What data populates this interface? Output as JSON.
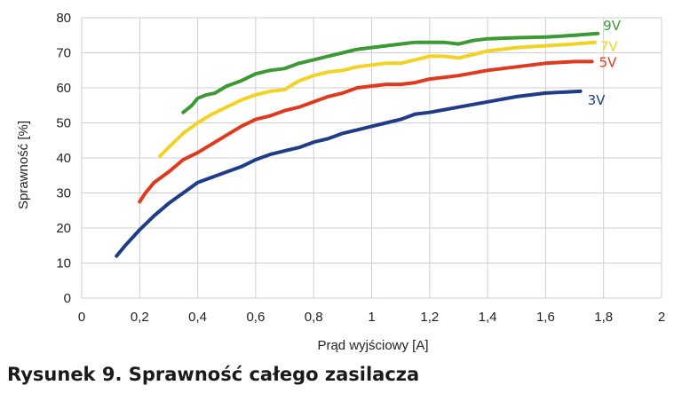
{
  "caption": "Rysunek 9. Sprawność całego zasilacza",
  "chart_data": {
    "type": "line",
    "title": "",
    "xlabel": "Prąd wyjściowy [A]",
    "ylabel": "Sprawność [%]",
    "xlim": [
      0,
      2
    ],
    "ylim": [
      0,
      80
    ],
    "x_ticks": [
      "0",
      "0,2",
      "0,4",
      "0,6",
      "0,8",
      "1",
      "1,2",
      "1,4",
      "1,6",
      "1,8",
      "2"
    ],
    "y_ticks": [
      "0",
      "10",
      "20",
      "30",
      "40",
      "50",
      "60",
      "70",
      "80"
    ],
    "grid": true,
    "legend": "inline-right",
    "series": [
      {
        "name": "9V",
        "color": "#3c9a34",
        "x": [
          0.35,
          0.38,
          0.4,
          0.43,
          0.46,
          0.5,
          0.55,
          0.6,
          0.65,
          0.7,
          0.75,
          0.8,
          0.85,
          0.9,
          0.95,
          1.0,
          1.05,
          1.1,
          1.15,
          1.2,
          1.25,
          1.3,
          1.35,
          1.4,
          1.5,
          1.6,
          1.7,
          1.78
        ],
        "y": [
          53,
          55,
          57,
          58,
          58.5,
          60.5,
          62,
          64,
          65,
          65.5,
          67,
          68,
          69,
          70,
          71,
          71.5,
          72,
          72.5,
          73,
          73,
          73,
          72.5,
          73.5,
          74,
          74.3,
          74.5,
          75,
          75.5
        ]
      },
      {
        "name": "7V",
        "color": "#f2d224",
        "x": [
          0.27,
          0.3,
          0.35,
          0.4,
          0.45,
          0.5,
          0.55,
          0.6,
          0.65,
          0.7,
          0.75,
          0.8,
          0.85,
          0.9,
          0.95,
          1.0,
          1.05,
          1.1,
          1.15,
          1.2,
          1.25,
          1.3,
          1.35,
          1.4,
          1.5,
          1.6,
          1.7,
          1.77
        ],
        "y": [
          40.5,
          43,
          47,
          50,
          52.5,
          54.5,
          56.5,
          58,
          59,
          59.5,
          62,
          63.5,
          64.5,
          65,
          66,
          66.5,
          67,
          67,
          68,
          69,
          69,
          68.5,
          69.5,
          70.5,
          71.5,
          72,
          72.5,
          73
        ]
      },
      {
        "name": "5V",
        "color": "#e03a1e",
        "x": [
          0.2,
          0.22,
          0.25,
          0.3,
          0.35,
          0.4,
          0.45,
          0.5,
          0.55,
          0.6,
          0.65,
          0.7,
          0.75,
          0.8,
          0.85,
          0.9,
          0.95,
          1.0,
          1.05,
          1.1,
          1.15,
          1.2,
          1.3,
          1.4,
          1.5,
          1.6,
          1.7,
          1.76
        ],
        "y": [
          27.5,
          30,
          33,
          36,
          39.5,
          41.5,
          44,
          46.5,
          49,
          51,
          52,
          53.5,
          54.5,
          56,
          57.5,
          58.5,
          60,
          60.5,
          61,
          61,
          61.5,
          62.5,
          63.5,
          65,
          66,
          67,
          67.5,
          67.5
        ]
      },
      {
        "name": "3V",
        "color": "#1f3c88",
        "x": [
          0.12,
          0.15,
          0.2,
          0.25,
          0.3,
          0.35,
          0.4,
          0.45,
          0.5,
          0.55,
          0.6,
          0.65,
          0.7,
          0.75,
          0.8,
          0.85,
          0.9,
          0.95,
          1.0,
          1.05,
          1.1,
          1.15,
          1.2,
          1.3,
          1.4,
          1.5,
          1.6,
          1.72
        ],
        "y": [
          12,
          15,
          19.5,
          23.5,
          27,
          30,
          33,
          34.5,
          36,
          37.5,
          39.5,
          41,
          42,
          43,
          44.5,
          45.5,
          47,
          48,
          49,
          50,
          51,
          52.5,
          53,
          54.5,
          56,
          57.5,
          58.5,
          59
        ]
      }
    ]
  }
}
